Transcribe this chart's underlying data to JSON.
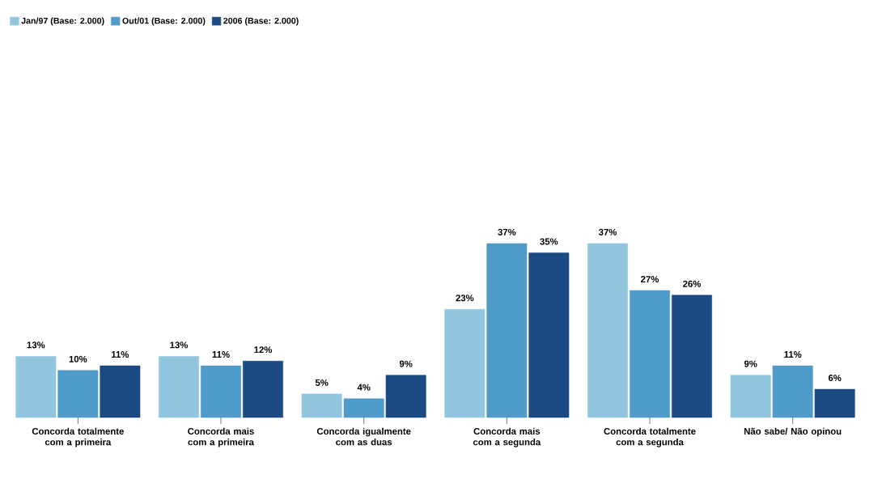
{
  "chart_data": {
    "type": "bar",
    "categories": [
      "Concorda totalmente com a primeira",
      "Concorda mais com a primeira",
      "Concorda igualmente com as duas",
      "Concorda mais com a segunda",
      "Concorda totalmente com a segunda",
      "Não sabe/ Não opinou"
    ],
    "series": [
      {
        "name": "Jan/97 (Base: 2.000)",
        "color": "#92c6df",
        "values": [
          13,
          13,
          5,
          23,
          37,
          9
        ],
        "value_labels": [
          "13%",
          "13%",
          "5%",
          "23%",
          "37%",
          "9%"
        ]
      },
      {
        "name": "Out/01 (Base: 2.000)",
        "color": "#4f9bc9",
        "values": [
          10,
          11,
          4,
          37,
          27,
          11
        ],
        "value_labels": [
          "10%",
          "11%",
          "4%",
          "37%",
          "27%",
          "11%"
        ]
      },
      {
        "name": "2006 (Base: 2.000)",
        "color": "#1c4a82",
        "values": [
          11,
          12,
          9,
          35,
          26,
          6
        ],
        "value_labels": [
          "11%",
          "12%",
          "9%",
          "35%",
          "26%",
          "6%"
        ]
      }
    ],
    "legend": "top left"
  }
}
